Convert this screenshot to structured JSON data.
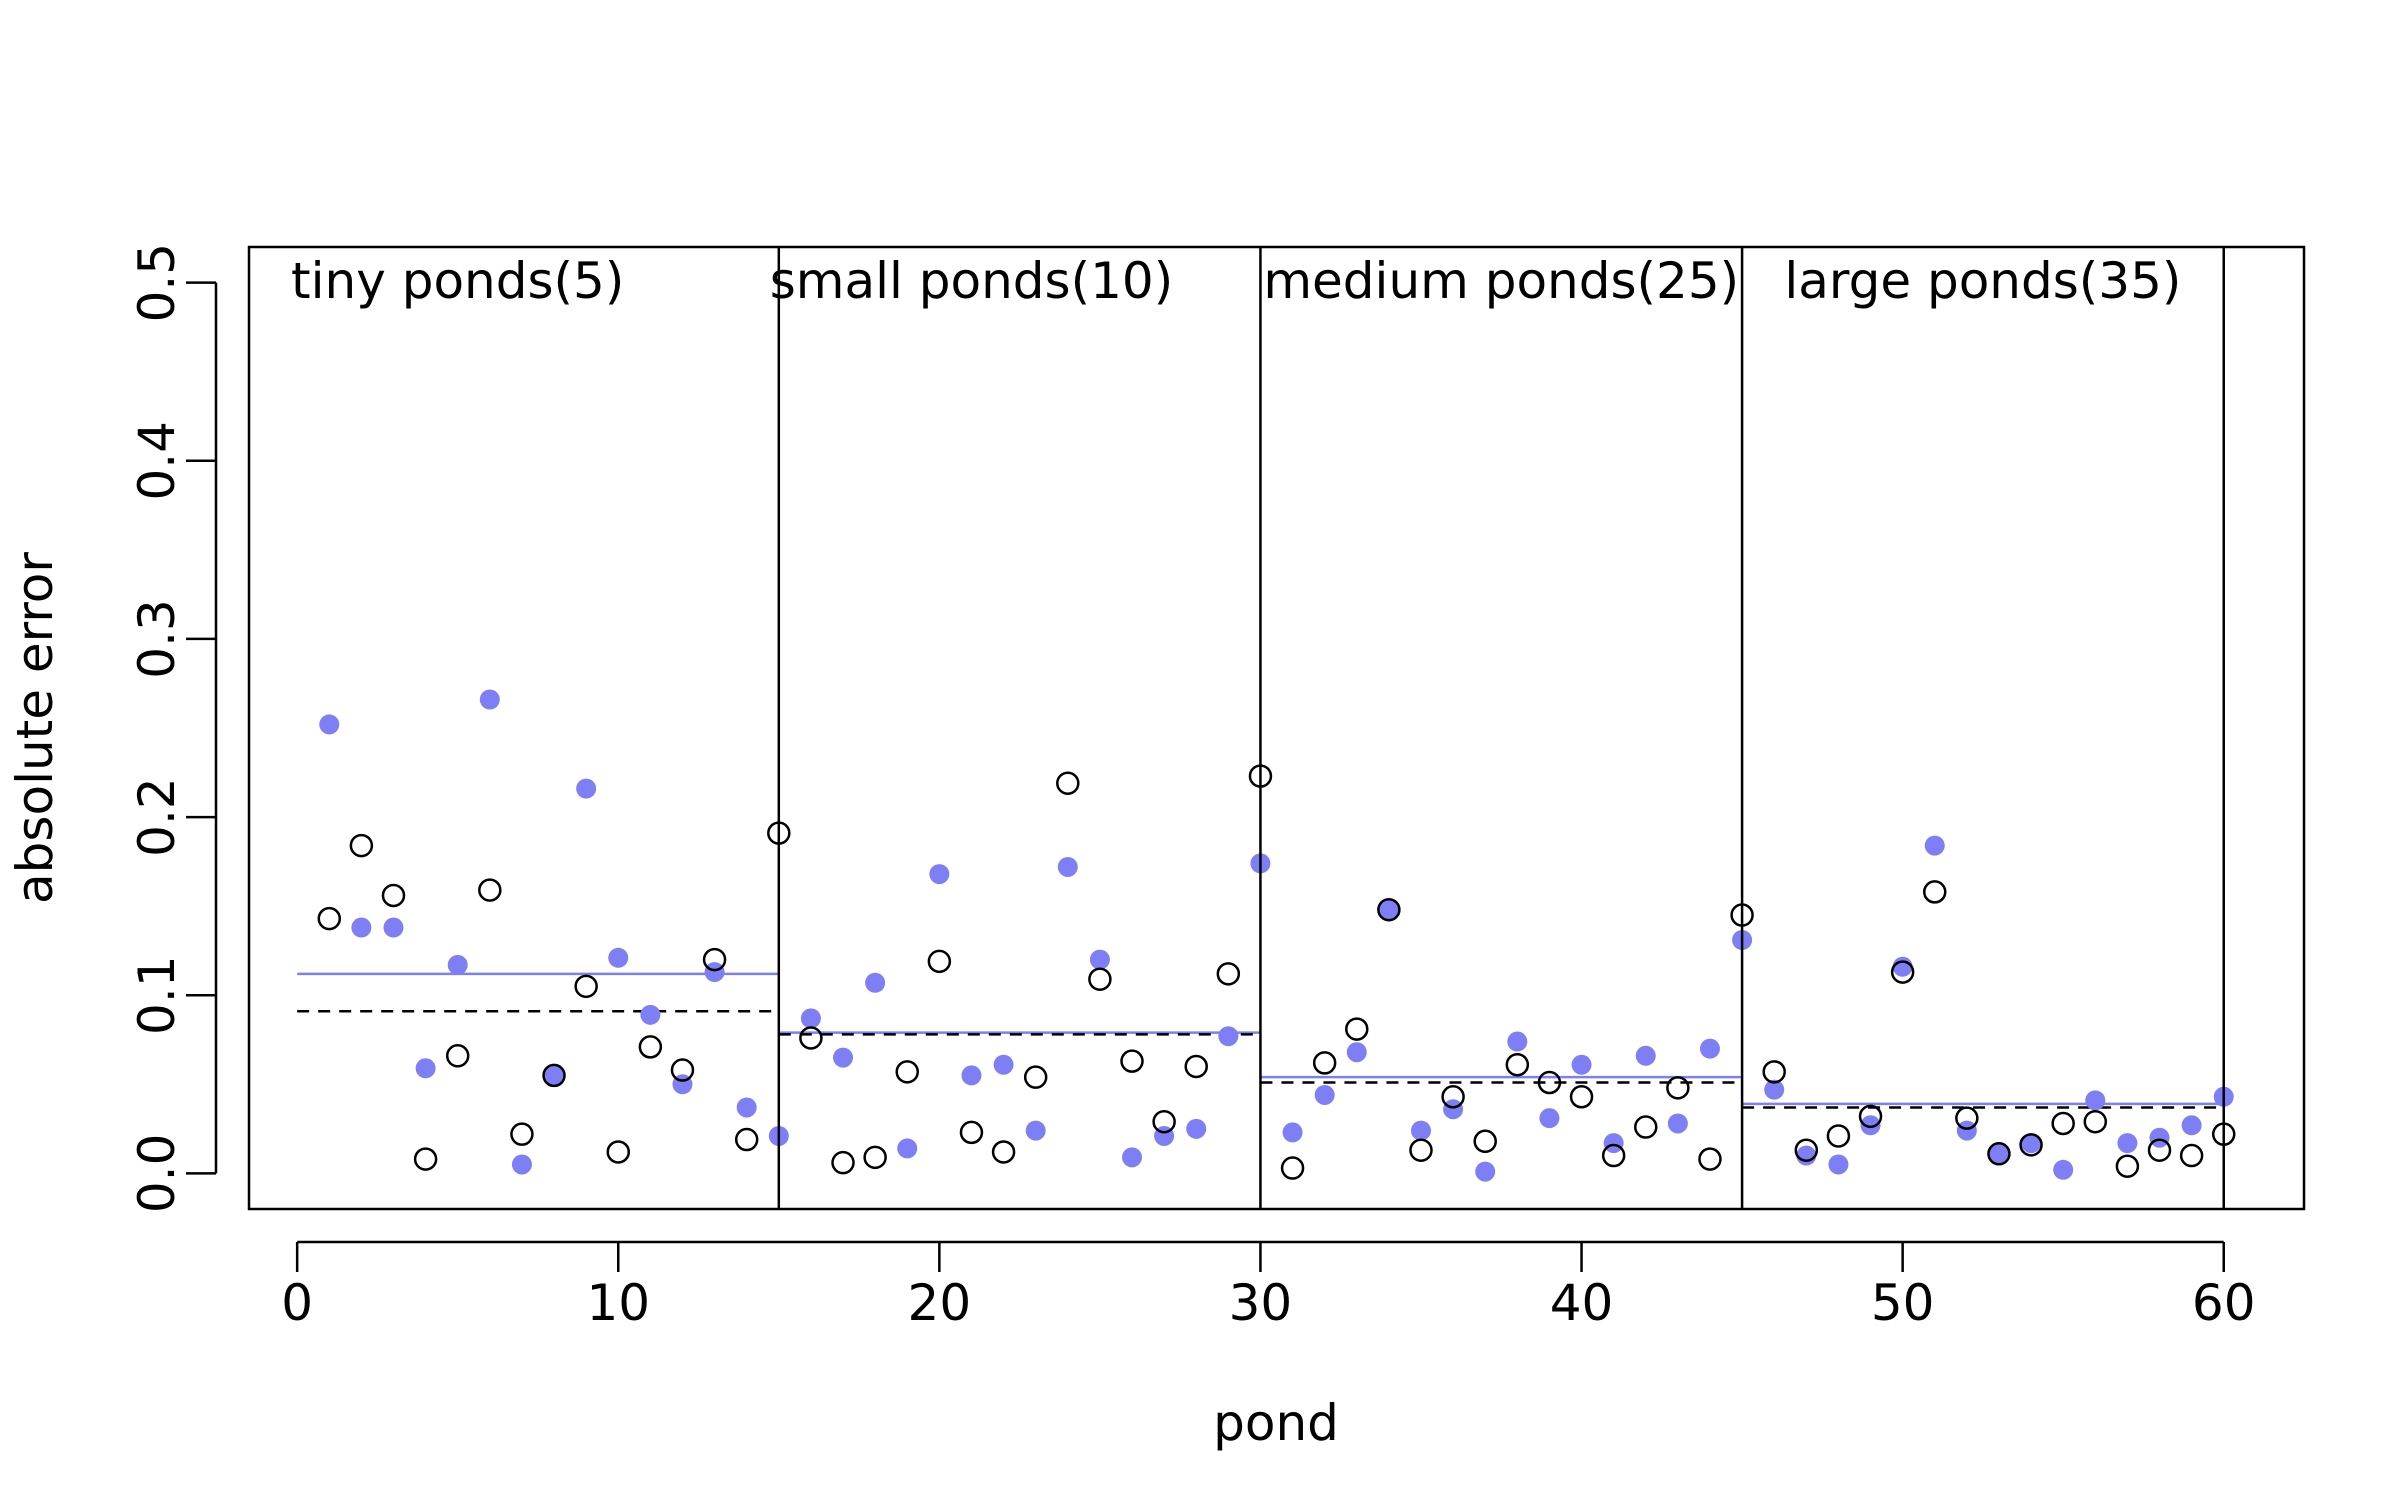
{
  "chart_data": {
    "type": "scatter",
    "title": "",
    "xlabel": "pond",
    "ylabel": "absolute error",
    "xlim": [
      -1.5,
      62.5
    ],
    "ylim": [
      -0.02,
      0.52
    ],
    "xticks": [
      0,
      10,
      20,
      30,
      40,
      50,
      60
    ],
    "yticks": [
      0.0,
      0.1,
      0.2,
      0.3,
      0.4,
      0.5
    ],
    "xtick_labels": [
      "0",
      "10",
      "20",
      "30",
      "40",
      "50",
      "60"
    ],
    "ytick_labels": [
      "0.0",
      "0.1",
      "0.2",
      "0.3",
      "0.4",
      "0.5"
    ],
    "grid": false,
    "colors": {
      "partial_pooling": "#7f7ff5",
      "no_pooling": "#000000"
    },
    "dividers": [
      15,
      30,
      45,
      60
    ],
    "groups": [
      {
        "label": "tiny ponds(5)",
        "x_start": 0,
        "x_end": 15,
        "label_x": 5,
        "mean_filled": 0.112,
        "mean_open": 0.091
      },
      {
        "label": "small ponds(10)",
        "x_start": 15,
        "x_end": 30,
        "label_x": 21,
        "mean_filled": 0.079,
        "mean_open": 0.078
      },
      {
        "label": "medium ponds(25)",
        "x_start": 30,
        "x_end": 45,
        "label_x": 37.5,
        "mean_filled": 0.054,
        "mean_open": 0.051
      },
      {
        "label": "large ponds(35)",
        "x_start": 45,
        "x_end": 60,
        "label_x": 52.5,
        "mean_filled": 0.039,
        "mean_open": 0.037
      }
    ],
    "series": [
      {
        "marker": "filled",
        "x": [
          1,
          2,
          3,
          4,
          5,
          6,
          7,
          8,
          9,
          10,
          11,
          12,
          13,
          14,
          15,
          16,
          17,
          18,
          19,
          20,
          21,
          22,
          23,
          24,
          25,
          26,
          27,
          28,
          29,
          30,
          31,
          32,
          33,
          34,
          35,
          36,
          37,
          38,
          39,
          40,
          41,
          42,
          43,
          44,
          45,
          46,
          47,
          48,
          49,
          50,
          51,
          52,
          53,
          54,
          55,
          56,
          57,
          58,
          59,
          60
        ],
        "values": [
          0.252,
          0.138,
          0.138,
          0.059,
          0.117,
          0.266,
          0.005,
          0.055,
          0.216,
          0.121,
          0.089,
          0.05,
          0.113,
          0.037,
          0.021,
          0.087,
          0.065,
          0.107,
          0.014,
          0.168,
          0.055,
          0.061,
          0.024,
          0.172,
          0.12,
          0.009,
          0.021,
          0.025,
          0.077,
          0.174,
          0.023,
          0.044,
          0.068,
          0.148,
          0.024,
          0.036,
          0.001,
          0.074,
          0.031,
          0.061,
          0.017,
          0.066,
          0.028,
          0.07,
          0.131,
          0.047,
          0.01,
          0.005,
          0.027,
          0.116,
          0.184,
          0.024,
          0.011,
          0.017,
          0.002,
          0.041,
          0.017,
          0.02,
          0.027,
          0.043
        ]
      },
      {
        "marker": "open",
        "x": [
          1,
          2,
          3,
          4,
          5,
          6,
          7,
          8,
          9,
          10,
          11,
          12,
          13,
          14,
          15,
          16,
          17,
          18,
          19,
          20,
          21,
          22,
          23,
          24,
          25,
          26,
          27,
          28,
          29,
          30,
          31,
          32,
          33,
          34,
          35,
          36,
          37,
          38,
          39,
          40,
          41,
          42,
          43,
          44,
          45,
          46,
          47,
          48,
          49,
          50,
          51,
          52,
          53,
          54,
          55,
          56,
          57,
          58,
          59,
          60
        ],
        "values": [
          0.143,
          0.184,
          0.156,
          0.008,
          0.066,
          0.159,
          0.022,
          0.055,
          0.105,
          0.012,
          0.071,
          0.058,
          0.12,
          0.019,
          0.191,
          0.076,
          0.006,
          0.009,
          0.057,
          0.119,
          0.023,
          0.012,
          0.054,
          0.219,
          0.109,
          0.063,
          0.029,
          0.06,
          0.112,
          0.223,
          0.003,
          0.062,
          0.081,
          0.148,
          0.013,
          0.043,
          0.018,
          0.061,
          0.051,
          0.043,
          0.01,
          0.026,
          0.048,
          0.008,
          0.145,
          0.057,
          0.013,
          0.021,
          0.032,
          0.113,
          0.158,
          0.031,
          0.011,
          0.016,
          0.028,
          0.029,
          0.004,
          0.013,
          0.01,
          0.022
        ]
      }
    ]
  }
}
